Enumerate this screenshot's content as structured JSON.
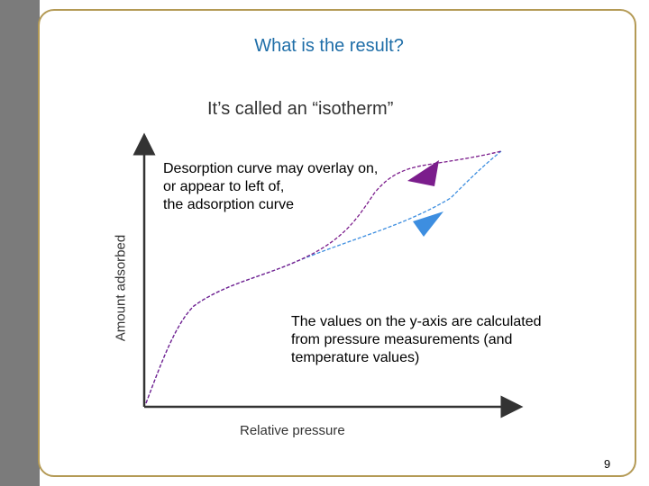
{
  "slide": {
    "title": "What is the result?",
    "caption": "It’s called an “isotherm”",
    "page_number": "9"
  },
  "annotations": {
    "desorption_note": "Desorption curve may overlay on,\nor appear to left of,\nthe adsorption curve",
    "values_note": "The values on the y-axis are calculated\nfrom pressure measurements (and\ntemperature values)"
  },
  "axes": {
    "x_label": "Relative pressure",
    "y_label": "Amount adsorbed"
  },
  "colors": {
    "adsorption": "#3d8ee0",
    "desorption": "#7b1d8c",
    "frame": "#b49a55",
    "title": "#1f6ea8"
  }
}
